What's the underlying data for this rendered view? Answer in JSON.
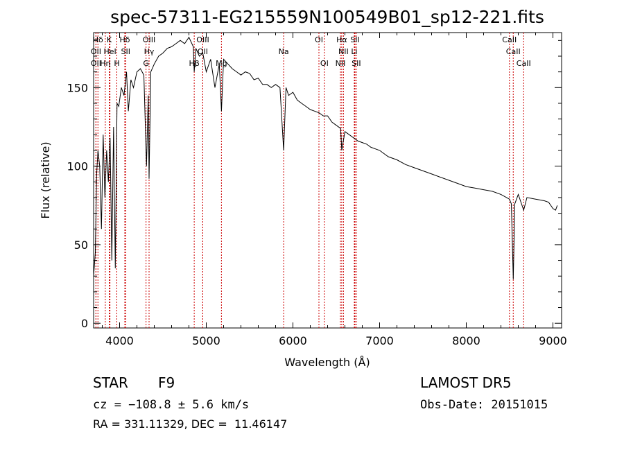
{
  "chart_data": {
    "type": "line",
    "title": "spec-57311-EG215559N100549B01_sp12-221.fits",
    "xlabel": "Wavelength (Å)",
    "ylabel": "Flux (relative)",
    "xlim": [
      3700,
      9100
    ],
    "ylim": [
      -3,
      185
    ],
    "x_ticks": [
      4000,
      5000,
      6000,
      7000,
      8000,
      9000
    ],
    "y_ticks": [
      0,
      50,
      100,
      150
    ],
    "x_tick_labels": [
      "4000",
      "5000",
      "6000",
      "7000",
      "8000",
      "9000"
    ],
    "y_tick_labels": [
      "0",
      "50",
      "100",
      "150"
    ],
    "grid": false,
    "line_color": "#000000",
    "marker_color": "#cc0000",
    "series": [
      {
        "x": [
          3700,
          3720,
          3735,
          3750,
          3770,
          3790,
          3810,
          3830,
          3850,
          3870,
          3890,
          3910,
          3930,
          3950,
          3970,
          3990,
          4020,
          4050,
          4080,
          4101,
          4130,
          4160,
          4200,
          4240,
          4280,
          4310,
          4330,
          4340,
          4360,
          4400,
          4450,
          4500,
          4550,
          4600,
          4650,
          4700,
          4750,
          4800,
          4850,
          4861,
          4880,
          4920,
          4960,
          5000,
          5050,
          5100,
          5150,
          5175,
          5200,
          5250,
          5300,
          5350,
          5400,
          5450,
          5500,
          5550,
          5600,
          5650,
          5700,
          5750,
          5800,
          5850,
          5893,
          5920,
          5950,
          6000,
          6050,
          6100,
          6150,
          6200,
          6250,
          6300,
          6350,
          6400,
          6450,
          6500,
          6550,
          6563,
          6600,
          6650,
          6700,
          6750,
          6800,
          6850,
          6900,
          6950,
          7000,
          7100,
          7200,
          7300,
          7400,
          7500,
          7600,
          7700,
          7800,
          7900,
          8000,
          8100,
          8200,
          8300,
          8400,
          8498,
          8520,
          8542,
          8560,
          8600,
          8662,
          8700,
          8800,
          8900,
          8950,
          9000,
          9030,
          9050
        ],
        "y": [
          30,
          45,
          95,
          110,
          100,
          60,
          120,
          80,
          110,
          90,
          118,
          40,
          125,
          35,
          140,
          138,
          150,
          145,
          160,
          135,
          155,
          150,
          160,
          162,
          158,
          100,
          145,
          92,
          160,
          165,
          170,
          172,
          175,
          176,
          178,
          180,
          178,
          182,
          176,
          160,
          175,
          170,
          172,
          160,
          168,
          150,
          165,
          135,
          168,
          165,
          162,
          160,
          158,
          160,
          159,
          155,
          156,
          152,
          152,
          150,
          152,
          150,
          110,
          150,
          145,
          147,
          142,
          140,
          138,
          136,
          135,
          134,
          132,
          132,
          128,
          126,
          124,
          110,
          122,
          120,
          118,
          116,
          115,
          114,
          112,
          111,
          110,
          106,
          104,
          101,
          99,
          97,
          95,
          93,
          91,
          89,
          87,
          86,
          85,
          84,
          82,
          79,
          76,
          28,
          76,
          82,
          72,
          80,
          79,
          78,
          77,
          73,
          72,
          75
        ]
      }
    ],
    "spectral_lines": [
      {
        "label": "Hδ",
        "wavelength": 3750,
        "row": 1
      },
      {
        "label": "K",
        "wavelength": 3880,
        "row": 1
      },
      {
        "label": "Hδ",
        "wavelength": 4060,
        "row": 1
      },
      {
        "label": "OIII",
        "wavelength": 4340,
        "row": 1
      },
      {
        "label": "OIII",
        "wavelength": 4960,
        "row": 1
      },
      {
        "label": "OI",
        "wavelength": 6300,
        "row": 1
      },
      {
        "label": "Hα",
        "wavelength": 6563,
        "row": 1
      },
      {
        "label": "SII",
        "wavelength": 6716,
        "row": 1
      },
      {
        "label": "CaII",
        "wavelength": 8498,
        "row": 1
      },
      {
        "label": "OII",
        "wavelength": 3727,
        "row": 2
      },
      {
        "label": "HeI",
        "wavelength": 3889,
        "row": 2
      },
      {
        "label": "SII",
        "wavelength": 4070,
        "row": 2
      },
      {
        "label": "Hγ",
        "wavelength": 4340,
        "row": 2
      },
      {
        "label": "OII",
        "wavelength": 4959,
        "row": 2
      },
      {
        "label": "Na",
        "wavelength": 5893,
        "row": 2
      },
      {
        "label": "NII",
        "wavelength": 6583,
        "row": 2
      },
      {
        "label": "Li",
        "wavelength": 6708,
        "row": 2
      },
      {
        "label": "CaII",
        "wavelength": 8542,
        "row": 2
      },
      {
        "label": "OII",
        "wavelength": 3727,
        "row": 3
      },
      {
        "label": "Hη",
        "wavelength": 3835,
        "row": 3
      },
      {
        "label": "H",
        "wavelength": 3968,
        "row": 3
      },
      {
        "label": "G",
        "wavelength": 4305,
        "row": 3
      },
      {
        "label": "Hβ",
        "wavelength": 4861,
        "row": 3
      },
      {
        "label": "Mg",
        "wavelength": 5175,
        "row": 3
      },
      {
        "label": "OI",
        "wavelength": 6363,
        "row": 3
      },
      {
        "label": "NII",
        "wavelength": 6548,
        "row": 3
      },
      {
        "label": "SII",
        "wavelength": 6731,
        "row": 3
      },
      {
        "label": "CaII",
        "wavelength": 8662,
        "row": 3
      }
    ]
  },
  "info": {
    "object_class": "STAR",
    "subclass": "F9",
    "survey": "LAMOST DR5",
    "cz": "cz = −108.8 ± 5.6 km/s",
    "obs_date": "Obs-Date: 20151015",
    "radec": "RA = 331.11329, DEC =  11.46147"
  }
}
